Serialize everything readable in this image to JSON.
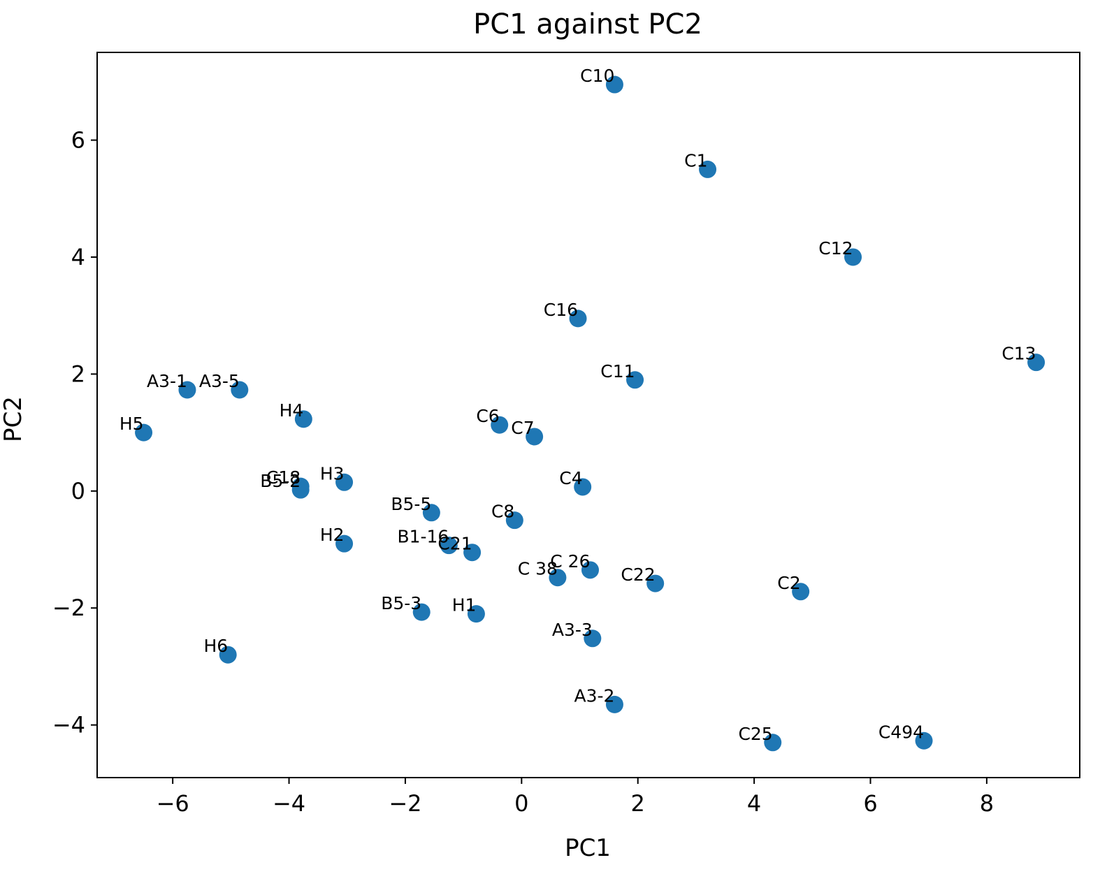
{
  "chart_data": {
    "type": "scatter",
    "title": "PC1 against PC2",
    "xlabel": "PC1",
    "ylabel": "PC2",
    "xlim": [
      -7.3,
      9.6
    ],
    "ylim": [
      -4.9,
      7.5
    ],
    "xticks": [
      -6,
      -4,
      -2,
      0,
      2,
      4,
      6,
      8
    ],
    "yticks": [
      -4,
      -2,
      0,
      2,
      4,
      6
    ],
    "xtick_labels": [
      "−6",
      "−4",
      "−2",
      "0",
      "2",
      "4",
      "6",
      "8"
    ],
    "ytick_labels": [
      "−4",
      "−2",
      "0",
      "2",
      "4",
      "6"
    ],
    "grid": false,
    "marker_color": "#1f77b4",
    "points": [
      {
        "label": "C10",
        "x": 1.6,
        "y": 6.95
      },
      {
        "label": "C1",
        "x": 3.2,
        "y": 5.5
      },
      {
        "label": "C12",
        "x": 5.7,
        "y": 4.0
      },
      {
        "label": "C16",
        "x": 0.97,
        "y": 2.95
      },
      {
        "label": "C13",
        "x": 8.85,
        "y": 2.2
      },
      {
        "label": "C11",
        "x": 1.95,
        "y": 1.9
      },
      {
        "label": "A3-1",
        "x": -5.75,
        "y": 1.73
      },
      {
        "label": "A3-5",
        "x": -4.85,
        "y": 1.73
      },
      {
        "label": "H4",
        "x": -3.75,
        "y": 1.23
      },
      {
        "label": "H5",
        "x": -6.5,
        "y": 1.0
      },
      {
        "label": "C6",
        "x": -0.38,
        "y": 1.13
      },
      {
        "label": "C7",
        "x": 0.22,
        "y": 0.93
      },
      {
        "label": "C18",
        "x": -3.8,
        "y": 0.08
      },
      {
        "label": "B5-2",
        "x": -3.8,
        "y": 0.02
      },
      {
        "label": "H3",
        "x": -3.05,
        "y": 0.15
      },
      {
        "label": "C4",
        "x": 1.05,
        "y": 0.07
      },
      {
        "label": "B5-5",
        "x": -1.55,
        "y": -0.37
      },
      {
        "label": "C8",
        "x": -0.12,
        "y": -0.5
      },
      {
        "label": "H2",
        "x": -3.05,
        "y": -0.9
      },
      {
        "label": "B1-16",
        "x": -1.25,
        "y": -0.93
      },
      {
        "label": "C21",
        "x": -0.85,
        "y": -1.05
      },
      {
        "label": "C 38",
        "x": 0.62,
        "y": -1.48
      },
      {
        "label": "C 26",
        "x": 1.18,
        "y": -1.35
      },
      {
        "label": "C22",
        "x": 2.3,
        "y": -1.58
      },
      {
        "label": "C2",
        "x": 4.8,
        "y": -1.72
      },
      {
        "label": "B5-3",
        "x": -1.72,
        "y": -2.07
      },
      {
        "label": "H1",
        "x": -0.78,
        "y": -2.1
      },
      {
        "label": "A3-3",
        "x": 1.22,
        "y": -2.52
      },
      {
        "label": "H6",
        "x": -5.05,
        "y": -2.8
      },
      {
        "label": "A3-2",
        "x": 1.6,
        "y": -3.65
      },
      {
        "label": "C25",
        "x": 4.32,
        "y": -4.3
      },
      {
        "label": "C494",
        "x": 6.92,
        "y": -4.27
      }
    ]
  }
}
